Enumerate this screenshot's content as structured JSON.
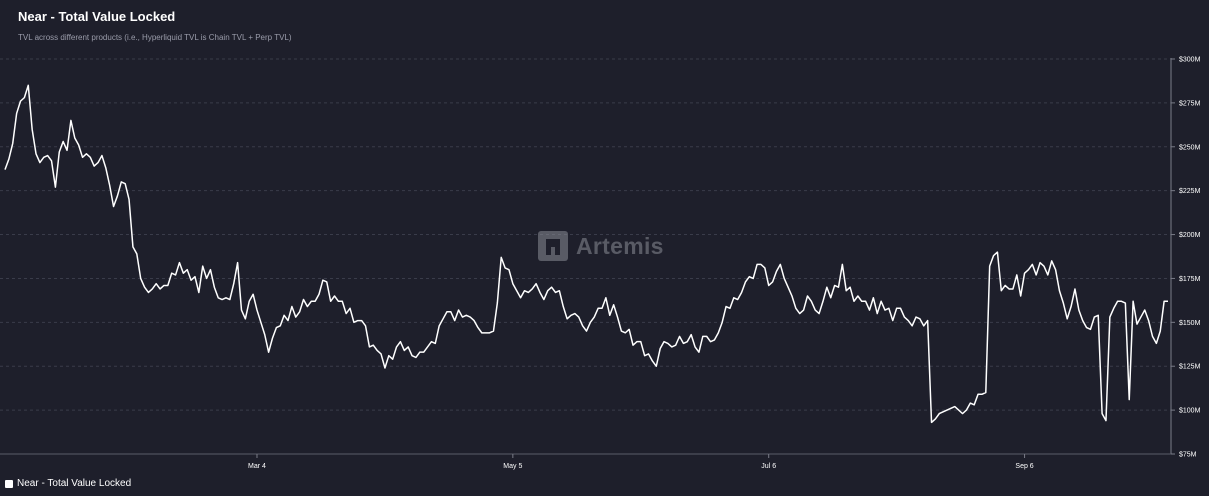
{
  "chart_data": {
    "type": "line",
    "title": "Near - Total Value Locked",
    "subtitle": "TVL across different products (i.e., Hyperliquid TVL is Chain TVL + Perp TVL)",
    "xlabel": "",
    "ylabel": "",
    "ylim": [
      75,
      300
    ],
    "y_ticks": [
      "$75M",
      "$100M",
      "$125M",
      "$150M",
      "$175M",
      "$200M",
      "$225M",
      "$250M",
      "$275M",
      "$300M"
    ],
    "x_ticks": [
      {
        "label": "Mar 4",
        "index": 65
      },
      {
        "label": "May 5",
        "index": 131
      },
      {
        "label": "Jul 6",
        "index": 197
      },
      {
        "label": "Sep 6",
        "index": 263
      }
    ],
    "grid": "horizontal",
    "legend": "bottom-left",
    "series": [
      {
        "name": "Near - Total Value Locked",
        "color": "#ffffff",
        "values": [
          237,
          243,
          252,
          269,
          276,
          278,
          285,
          260,
          246,
          241,
          244,
          245,
          242,
          227,
          247,
          253,
          248,
          265,
          255,
          251,
          244,
          246,
          244,
          239,
          241,
          245,
          238,
          228,
          216,
          222,
          230,
          229,
          220,
          193,
          189,
          175,
          170,
          167,
          169,
          172,
          169,
          171,
          171,
          178,
          177,
          184,
          178,
          180,
          174,
          176,
          167,
          182,
          175,
          180,
          170,
          164,
          163,
          164,
          163,
          172,
          184,
          157,
          152,
          162,
          166,
          157,
          150,
          143,
          133,
          141,
          147,
          148,
          154,
          151,
          159,
          153,
          156,
          163,
          159,
          162,
          162,
          166,
          174,
          173,
          162,
          165,
          162,
          162,
          155,
          158,
          150,
          151,
          151,
          148,
          136,
          137,
          134,
          132,
          124,
          131,
          129,
          136,
          139,
          134,
          136,
          131,
          130,
          133,
          133,
          136,
          139,
          138,
          148,
          152,
          156,
          156,
          151,
          157,
          153,
          154,
          153,
          151,
          147,
          144,
          144,
          144,
          145,
          161,
          187,
          181,
          180,
          172,
          168,
          164,
          168,
          167,
          169,
          172,
          167,
          163,
          168,
          170,
          167,
          168,
          159,
          152,
          154,
          155,
          153,
          148,
          145,
          150,
          153,
          158,
          158,
          164,
          154,
          160,
          153,
          145,
          144,
          146,
          137,
          139,
          139,
          131,
          132,
          128,
          125,
          135,
          139,
          138,
          136,
          137,
          142,
          138,
          139,
          143,
          136,
          133,
          142,
          142,
          139,
          140,
          144,
          150,
          159,
          158,
          164,
          163,
          167,
          173,
          176,
          175,
          183,
          183,
          181,
          171,
          173,
          179,
          183,
          175,
          170,
          165,
          158,
          155,
          157,
          165,
          162,
          157,
          155,
          162,
          170,
          164,
          171,
          170,
          183,
          168,
          170,
          162,
          165,
          162,
          162,
          157,
          164,
          155,
          162,
          157,
          158,
          151,
          158,
          158,
          153,
          151,
          148,
          153,
          152,
          148,
          151,
          93,
          95,
          98,
          99,
          100,
          101,
          102,
          100,
          98,
          100,
          104,
          103,
          109,
          109,
          110,
          182,
          188,
          190,
          168,
          171,
          169,
          169,
          177,
          165,
          178,
          180,
          183,
          177,
          184,
          182,
          177,
          185,
          180,
          168,
          161,
          152,
          159,
          169,
          157,
          151,
          147,
          146,
          153,
          154,
          98,
          94,
          153,
          158,
          162,
          162,
          161,
          106,
          162,
          149,
          153,
          157,
          151,
          142,
          138,
          145,
          162,
          162
        ]
      }
    ]
  },
  "watermark": "Artemis"
}
